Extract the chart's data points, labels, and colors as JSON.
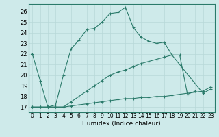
{
  "xlabel": "Humidex (Indice chaleur)",
  "bg_color": "#ceeaea",
  "grid_color": "#b8d8d8",
  "line_color": "#2a7a6a",
  "xlim": [
    -0.5,
    23.5
  ],
  "ylim": [
    16.5,
    26.7
  ],
  "xticks": [
    0,
    1,
    2,
    3,
    4,
    5,
    6,
    7,
    8,
    9,
    10,
    11,
    12,
    13,
    14,
    15,
    16,
    17,
    18,
    19,
    20,
    21,
    22,
    23
  ],
  "yticks": [
    17,
    18,
    19,
    20,
    21,
    22,
    23,
    24,
    25,
    26
  ],
  "series": [
    {
      "x": [
        0,
        1,
        2,
        3,
        4,
        5,
        6,
        7,
        8,
        9,
        10,
        11,
        12,
        13,
        14,
        15,
        16,
        17,
        18,
        19,
        20,
        21,
        22,
        23
      ],
      "y": [
        22,
        19.5,
        17,
        17.2,
        20.0,
        22.5,
        23.3,
        24.3,
        24.4,
        25.0,
        25.8,
        25.9,
        26.4,
        24.5,
        23.6,
        23.2,
        23.0,
        23.1,
        21.9,
        21.9,
        18.2,
        18.5,
        null,
        null
      ]
    },
    {
      "x": [
        0,
        1,
        2,
        3,
        4,
        5,
        6,
        7,
        8,
        9,
        10,
        11,
        12,
        13,
        14,
        15,
        16,
        17,
        18,
        19,
        20,
        21,
        22,
        23
      ],
      "y": [
        17,
        17,
        17,
        17,
        17,
        17.5,
        18.0,
        18.5,
        19.0,
        19.5,
        20.0,
        20.3,
        20.5,
        20.8,
        21.1,
        21.3,
        21.5,
        21.7,
        21.9,
        null,
        null,
        null,
        18.3,
        18.7
      ]
    },
    {
      "x": [
        0,
        1,
        2,
        3,
        4,
        5,
        6,
        7,
        8,
        9,
        10,
        11,
        12,
        13,
        14,
        15,
        16,
        17,
        18,
        19,
        20,
        21,
        22,
        23
      ],
      "y": [
        17,
        17,
        17,
        17,
        17,
        17.1,
        17.2,
        17.3,
        17.4,
        17.5,
        17.6,
        17.7,
        17.8,
        17.8,
        17.9,
        17.9,
        18.0,
        18.0,
        18.1,
        null,
        null,
        null,
        18.5,
        18.9
      ]
    }
  ]
}
